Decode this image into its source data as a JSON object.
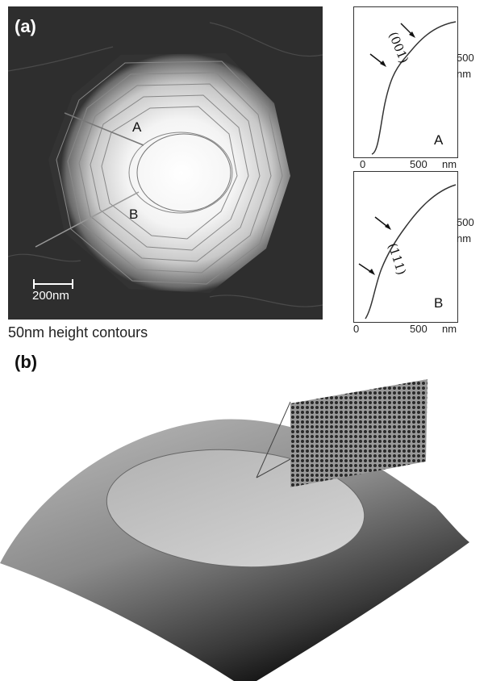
{
  "panel_a": {
    "label": "(a)",
    "scale_bar_label": "200nm",
    "line_labels": [
      "A",
      "B"
    ],
    "caption": "50nm height contours"
  },
  "profiles": [
    {
      "id": "A",
      "label": "A",
      "x_ticks": [
        "0",
        "500"
      ],
      "x_unit": "nm",
      "y_tick": "500",
      "y_unit": "nm",
      "plane": "(001)"
    },
    {
      "id": "B",
      "label": "B",
      "x_ticks": [
        "0",
        "500"
      ],
      "x_unit": "nm",
      "y_tick": "500",
      "y_unit": "nm",
      "plane": "(111)"
    }
  ],
  "panel_b": {
    "label": "(b)"
  }
}
